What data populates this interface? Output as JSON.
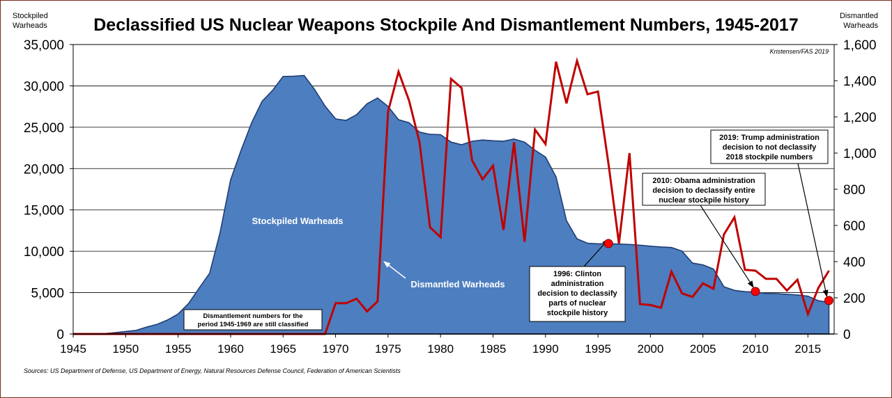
{
  "chart_data": {
    "type": "area+line",
    "title": "Declassified US Nuclear Weapons Stockpile And Dismantlement Numbers, 1945-2017",
    "ylabel_left": [
      "Stockpiled",
      "Warheads"
    ],
    "ylabel_right": [
      "Dismantled",
      "Warheads"
    ],
    "credit": "Kristensen/FAS 2019",
    "source": "Sources: US Department of Defense, US Department of Energy, Natural Resources Defense Council, Federation of American Scientists",
    "xlim": [
      1945,
      2017.5
    ],
    "ylim_left": [
      0,
      35000
    ],
    "ylim_right": [
      0,
      1600
    ],
    "x_ticks": [
      "1945",
      "1950",
      "1955",
      "1960",
      "1965",
      "1970",
      "1975",
      "1980",
      "1985",
      "1990",
      "1995",
      "2000",
      "2005",
      "2010",
      "2015"
    ],
    "left_ticks": [
      "0",
      "5,000",
      "10,000",
      "15,000",
      "20,000",
      "25,000",
      "30,000",
      "35,000"
    ],
    "right_ticks": [
      "0",
      "200",
      "400",
      "600",
      "800",
      "1,000",
      "1,200",
      "1,400",
      "1,600"
    ],
    "grid": true,
    "colors": {
      "stockpile_fill": "#4d7ebf",
      "stockpile_edge": "#1f3d73",
      "dismantled_line": "#c00000",
      "marker": "#ff0000"
    },
    "series": [
      {
        "name": "Stockpiled Warheads",
        "axis": "left",
        "kind": "area",
        "x": [
          1945,
          1946,
          1947,
          1948,
          1949,
          1950,
          1951,
          1952,
          1953,
          1954,
          1955,
          1956,
          1957,
          1958,
          1959,
          1960,
          1961,
          1962,
          1963,
          1964,
          1965,
          1966,
          1967,
          1968,
          1969,
          1970,
          1971,
          1972,
          1973,
          1974,
          1975,
          1976,
          1977,
          1978,
          1979,
          1980,
          1981,
          1982,
          1983,
          1984,
          1985,
          1986,
          1987,
          1988,
          1989,
          1990,
          1991,
          1992,
          1993,
          1994,
          1995,
          1996,
          1997,
          1998,
          1999,
          2000,
          2001,
          2002,
          2003,
          2004,
          2005,
          2006,
          2007,
          2008,
          2009,
          2010,
          2011,
          2012,
          2013,
          2014,
          2015,
          2016,
          2017
        ],
        "values": [
          2,
          9,
          13,
          50,
          170,
          299,
          438,
          841,
          1169,
          1703,
          2422,
          3692,
          5543,
          7345,
          12298,
          18638,
          22229,
          25540,
          28133,
          29463,
          31139,
          31175,
          31255,
          29561,
          27552,
          26008,
          25830,
          26516,
          27835,
          28537,
          27519,
          25914,
          25542,
          24418,
          24138,
          24104,
          23208,
          22886,
          23305,
          23459,
          23368,
          23317,
          23575,
          23205,
          22217,
          21392,
          19008,
          13708,
          11511,
          10979,
          10904,
          10923,
          10871,
          10824,
          10738,
          10615,
          10526,
          10457,
          10027,
          8570,
          8360,
          7853,
          5709,
          5273,
          5113,
          5066,
          4897,
          4881,
          4804,
          4717,
          4571,
          4018,
          3822
        ]
      },
      {
        "name": "Dismantled Warheads",
        "axis": "right",
        "kind": "line",
        "x": [
          1945,
          1969,
          1970,
          1971,
          1972,
          1973,
          1974,
          1975,
          1976,
          1977,
          1978,
          1979,
          1980,
          1981,
          1982,
          1983,
          1984,
          1985,
          1986,
          1987,
          1988,
          1989,
          1990,
          1991,
          1992,
          1993,
          1994,
          1995,
          1996,
          1997,
          1998,
          1999,
          2000,
          2001,
          2002,
          2003,
          2004,
          2005,
          2006,
          2007,
          2008,
          2009,
          2010,
          2011,
          2012,
          2013,
          2014,
          2015,
          2016,
          2017
        ],
        "values": [
          0,
          0,
          170,
          170,
          195,
          125,
          180,
          1230,
          1450,
          1290,
          1060,
          590,
          535,
          1410,
          1360,
          960,
          855,
          930,
          575,
          1060,
          510,
          1130,
          1050,
          1505,
          1275,
          1510,
          1325,
          1340,
          940,
          500,
          1000,
          165,
          160,
          145,
          345,
          225,
          205,
          280,
          250,
          550,
          645,
          355,
          350,
          305,
          305,
          240,
          300,
          110,
          255,
          350
        ]
      }
    ],
    "labels": {
      "stockpiled": "Stockpiled Warheads",
      "dismantled": "Dismantled Warheads",
      "classified_note": [
        "Dismantlement numbers for the",
        "period 1945-1969 are still classified"
      ]
    },
    "annotations": [
      {
        "year": 1996,
        "value": 500,
        "lines": [
          "1996: Clinton",
          "administration",
          "decision to declassify",
          "parts of nuclear",
          "stockpile history"
        ]
      },
      {
        "year": 2010,
        "value": 235,
        "lines": [
          "2010: Obama administration",
          "decision to declassify entire",
          "nuclear stockpile history"
        ]
      },
      {
        "year": 2017,
        "value": 185,
        "lines": [
          "2019: Trump administration",
          "decision to not declassify",
          "2018 stockpile numbers"
        ]
      }
    ]
  }
}
